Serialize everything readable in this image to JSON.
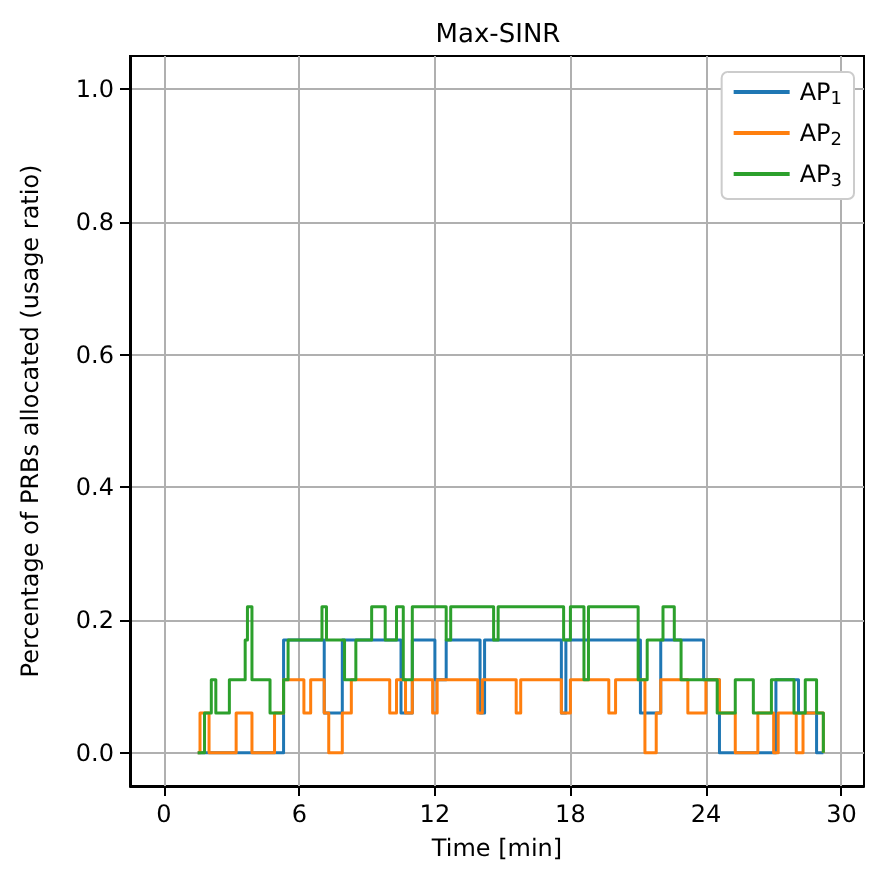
{
  "chart_data": {
    "type": "step",
    "title": "Max-SINR",
    "xlabel": "Time [min]",
    "ylabel": "Percentage of PRBs allocated (usage ratio)",
    "xlim": [
      -1.5,
      31
    ],
    "xticks": [
      0,
      6,
      12,
      18,
      24,
      30
    ],
    "ylim": [
      -0.05,
      1.05
    ],
    "yticks": [
      {
        "value": 0,
        "label": "0.0"
      },
      0.2,
      0.4,
      0.6,
      0.8,
      {
        "value": 1,
        "label": "1.0"
      }
    ],
    "grid": true,
    "legend": "top right",
    "series": [
      {
        "name": "AP$_{1}$",
        "color": "#1f77b4",
        "x": [
          1.5,
          5.3,
          7.1,
          7.9,
          10.5,
          11.0,
          12.0,
          12.5,
          14.0,
          14.2,
          17.6,
          17.8,
          21.1,
          22.0,
          23.9,
          24.6,
          27.1,
          28.1,
          28.9,
          29.2
        ],
        "values": [
          0,
          0.17,
          0.06,
          0.17,
          0.06,
          0.17,
          0.11,
          0.17,
          0.06,
          0.17,
          0.06,
          0.17,
          0.06,
          0.17,
          0.11,
          0,
          0.11,
          0.06,
          0,
          0
        ]
      },
      {
        "name": "AP$_{2}$",
        "color": "#ff7f0e",
        "x": [
          1.5,
          1.6,
          2.0,
          3.2,
          3.9,
          4.9,
          5.3,
          6.2,
          6.5,
          7.1,
          7.3,
          7.9,
          8.3,
          10.0,
          10.3,
          10.7,
          11.0,
          11.9,
          12.1,
          13.9,
          14.1,
          15.6,
          15.8,
          17.6,
          18.0,
          19.7,
          20.0,
          21.3,
          21.8,
          22.0,
          23.2,
          24.0,
          24.6,
          25.3,
          26.3,
          27.0,
          27.2,
          28.0,
          28.3,
          29.2
        ],
        "values": [
          0,
          0.06,
          0,
          0.06,
          0,
          0.06,
          0.11,
          0.06,
          0.11,
          0.06,
          0,
          0.06,
          0.11,
          0.06,
          0.11,
          0.06,
          0.11,
          0.06,
          0.11,
          0.06,
          0.11,
          0.06,
          0.11,
          0.06,
          0.11,
          0.06,
          0.11,
          0,
          0.06,
          0.11,
          0.06,
          0.11,
          0.06,
          0,
          0.06,
          0,
          0.06,
          0,
          0.06,
          0
        ]
      },
      {
        "name": "AP$_{3}$",
        "color": "#2ca02c",
        "x": [
          1.5,
          1.8,
          2.1,
          2.3,
          2.9,
          3.6,
          3.7,
          3.9,
          4.7,
          5.3,
          5.5,
          6.3,
          7.0,
          7.2,
          8.0,
          8.5,
          9.2,
          9.8,
          10.3,
          10.6,
          11.0,
          12.5,
          12.7,
          14.6,
          14.8,
          17.7,
          18.0,
          18.6,
          18.8,
          21.0,
          21.4,
          22.1,
          22.6,
          22.9,
          24.5,
          25.3,
          26.1,
          26.9,
          27.9,
          28.4,
          28.9,
          29.2
        ],
        "values": [
          0,
          0.06,
          0.11,
          0.06,
          0.11,
          0.17,
          0.22,
          0.11,
          0.06,
          0.11,
          0.17,
          0.17,
          0.22,
          0.17,
          0.11,
          0.17,
          0.22,
          0.17,
          0.22,
          0.11,
          0.22,
          0.17,
          0.22,
          0.17,
          0.22,
          0.17,
          0.22,
          0.11,
          0.22,
          0.11,
          0.17,
          0.22,
          0.17,
          0.11,
          0.06,
          0.11,
          0.06,
          0.11,
          0.06,
          0.11,
          0.06,
          0
        ]
      }
    ]
  }
}
